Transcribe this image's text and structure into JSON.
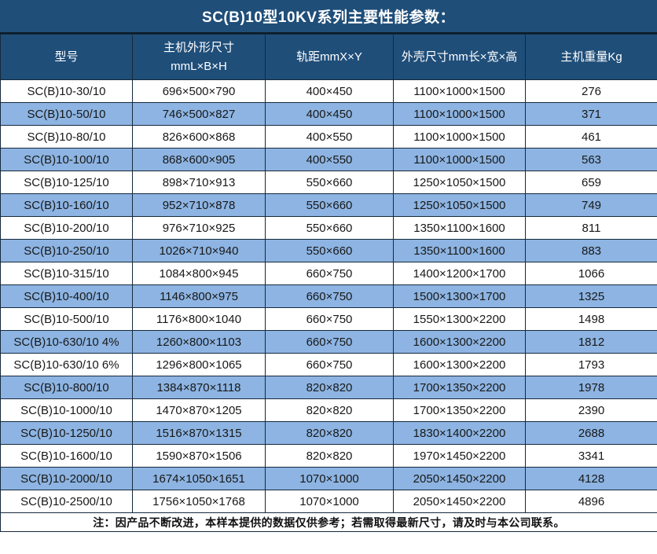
{
  "title": "SC(B)10型10KV系列主要性能参数：",
  "colors": {
    "header_bg": "#1F4E79",
    "alt_row_bg": "#8DB4E2",
    "row_bg": "#FFFFFF",
    "header_text": "#FFFFFF",
    "cell_text": "#181818",
    "border": "#16293C"
  },
  "table": {
    "headers": {
      "model": "型号",
      "dimensions_line1": "主机外形尺寸",
      "dimensions_line2": "mmL×B×H",
      "rail_gauge": "轨距mmX×Y",
      "shell_size": "外壳尺寸mm长×宽×高",
      "weight": "主机重量Kg"
    },
    "rows": [
      [
        "SC(B)10-30/10",
        "696×500×790",
        "400×450",
        "1100×1000×1500",
        "276"
      ],
      [
        "SC(B)10-50/10",
        "746×500×827",
        "400×450",
        "1100×1000×1500",
        "371"
      ],
      [
        "SC(B)10-80/10",
        "826×600×868",
        "400×550",
        "1100×1000×1500",
        "461"
      ],
      [
        "SC(B)10-100/10",
        "868×600×905",
        "400×550",
        "1100×1000×1500",
        "563"
      ],
      [
        "SC(B)10-125/10",
        "898×710×913",
        "550×660",
        "1250×1050×1500",
        "659"
      ],
      [
        "SC(B)10-160/10",
        "952×710×878",
        "550×660",
        "1250×1050×1500",
        "749"
      ],
      [
        "SC(B)10-200/10",
        "976×710×925",
        "550×660",
        "1350×1100×1600",
        "811"
      ],
      [
        "SC(B)10-250/10",
        "1026×710×940",
        "550×660",
        "1350×1100×1600",
        "883"
      ],
      [
        "SC(B)10-315/10",
        "1084×800×945",
        "660×750",
        "1400×1200×1700",
        "1066"
      ],
      [
        "SC(B)10-400/10",
        "1146×800×975",
        "660×750",
        "1500×1300×1700",
        "1325"
      ],
      [
        "SC(B)10-500/10",
        "1176×800×1040",
        "660×750",
        "1550×1300×2200",
        "1498"
      ],
      [
        "SC(B)10-630/10 4%",
        "1260×800×1103",
        "660×750",
        "1600×1300×2200",
        "1812"
      ],
      [
        "SC(B)10-630/10 6%",
        "1296×800×1065",
        "660×750",
        "1600×1300×2200",
        "1793"
      ],
      [
        "SC(B)10-800/10",
        "1384×870×1118",
        "820×820",
        "1700×1350×2200",
        "1978"
      ],
      [
        "SC(B)10-1000/10",
        "1470×870×1205",
        "820×820",
        "1700×1350×2200",
        "2390"
      ],
      [
        "SC(B)10-1250/10",
        "1516×870×1315",
        "820×820",
        "1830×1400×2200",
        "2688"
      ],
      [
        "SC(B)10-1600/10",
        "1590×870×1506",
        "820×820",
        "1970×1450×2200",
        "3341"
      ],
      [
        "SC(B)10-2000/10",
        "1674×1050×1651",
        "1070×1000",
        "2050×1450×2200",
        "4128"
      ],
      [
        "SC(B)10-2500/10",
        "1756×1050×1768",
        "1070×1000",
        "2050×1450×2200",
        "4896"
      ]
    ]
  },
  "footer_note": "注：因产品不断改进，本样本提供的数据仅供参考；若需取得最新尺寸，请及时与本公司联系。"
}
